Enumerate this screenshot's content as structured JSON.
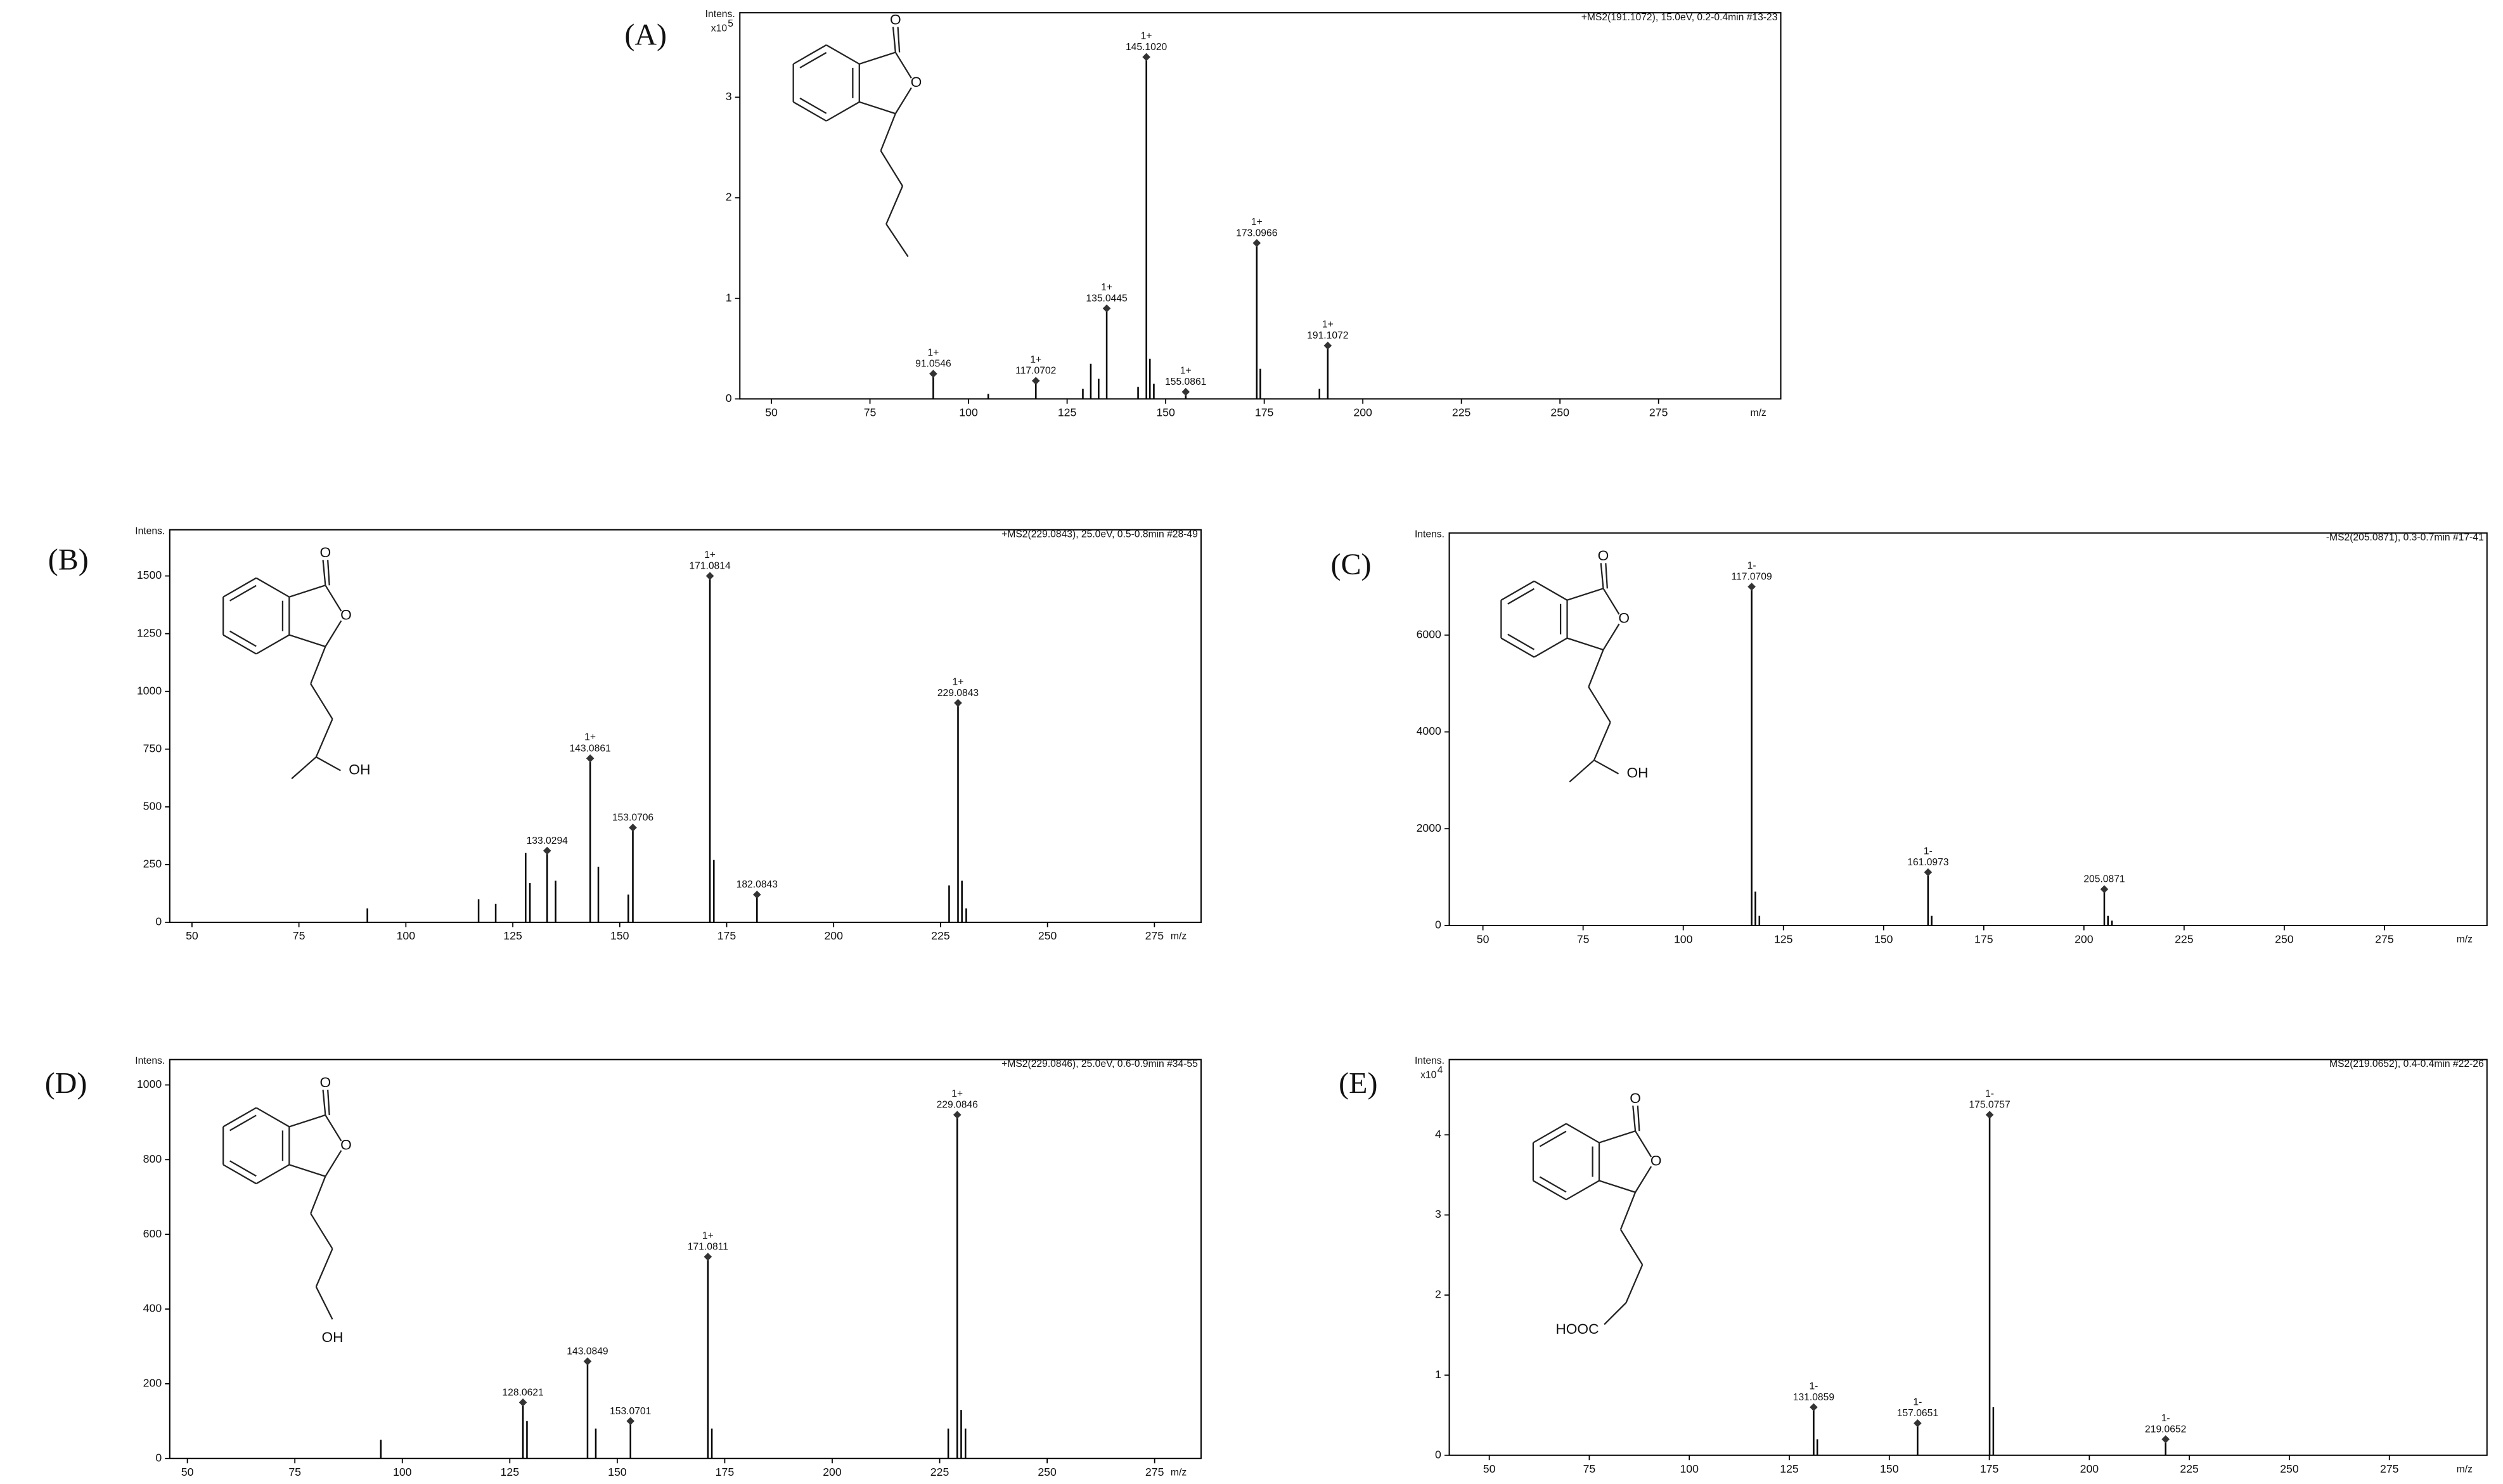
{
  "chart_data": [
    {
      "type": "bar",
      "panel": "(A)",
      "ylabel": "Intens.",
      "y_multiplier": {
        "base": "x10",
        "exponent": "5"
      },
      "header": "+MS2(191.1072), 15.0eV, 0.2-0.4min #13-23",
      "xlabel": "m/z",
      "xlim": [
        42,
        306
      ],
      "xticks": [
        50,
        75,
        100,
        125,
        150,
        175,
        200,
        225,
        250,
        275
      ],
      "ylim": [
        0,
        3.84
      ],
      "yticks": [
        0,
        1,
        2,
        3
      ],
      "x": [
        91.0546,
        105,
        117.0702,
        129,
        131,
        133,
        135.0445,
        143,
        145.102,
        146,
        147,
        155.0861,
        173.0966,
        174,
        189,
        191.1072
      ],
      "values": [
        0.25,
        0.05,
        0.18,
        0.1,
        0.35,
        0.2,
        0.9,
        0.12,
        3.4,
        0.4,
        0.15,
        0.07,
        1.55,
        0.3,
        0.1,
        0.53
      ],
      "peak_labels": [
        {
          "x": 91.0546,
          "charge": "1+",
          "label": "91.0546"
        },
        {
          "x": 117.0702,
          "charge": "1+",
          "label": "117.0702"
        },
        {
          "x": 135.0445,
          "charge": "1+",
          "label": "135.0445"
        },
        {
          "x": 145.102,
          "charge": "1+",
          "label": "145.1020"
        },
        {
          "x": 155.0861,
          "charge": "1+",
          "label": "155.0861"
        },
        {
          "x": 173.0966,
          "charge": "1+",
          "label": "173.0966"
        },
        {
          "x": 191.1072,
          "charge": "1+",
          "label": "191.1072"
        }
      ],
      "structure_labels": [
        "O",
        "O"
      ]
    },
    {
      "type": "bar",
      "panel": "(B)",
      "ylabel": "Intens.",
      "header": "+MS2(229.0843), 25.0eV, 0.5-0.8min #28-49",
      "xlabel": "m/z",
      "xlim": [
        44.8,
        285.9
      ],
      "xticks": [
        50,
        75,
        100,
        125,
        150,
        175,
        200,
        225,
        250,
        275
      ],
      "ylim": [
        0,
        1700
      ],
      "yticks": [
        0,
        250,
        500,
        750,
        1000,
        1250,
        1500
      ],
      "x": [
        91,
        117,
        121,
        128,
        129,
        133.0294,
        135,
        143.0861,
        145,
        152,
        153.0706,
        171.0814,
        172,
        182.0843,
        227,
        229.0843,
        230,
        231
      ],
      "values": [
        60,
        100,
        80,
        300,
        170,
        310,
        180,
        710,
        240,
        120,
        410,
        1500,
        270,
        120,
        160,
        950,
        180,
        60
      ],
      "peak_labels": [
        {
          "x": 133.0294,
          "charge": null,
          "label": "133.0294"
        },
        {
          "x": 143.0861,
          "charge": "1+",
          "label": "143.0861"
        },
        {
          "x": 153.0706,
          "charge": null,
          "label": "153.0706"
        },
        {
          "x": 171.0814,
          "charge": "1+",
          "label": "171.0814"
        },
        {
          "x": 182.0843,
          "charge": null,
          "label": "182.0843"
        },
        {
          "x": 229.0843,
          "charge": "1+",
          "label": "229.0843"
        }
      ],
      "structure_labels": [
        "O",
        "O",
        "OH"
      ]
    },
    {
      "type": "bar",
      "panel": "(C)",
      "ylabel": "Intens.",
      "header": "-MS2(205.0871), 0.3-0.7min #17-41",
      "xlabel": "m/z",
      "xlim": [
        41.6,
        300.6
      ],
      "xticks": [
        50,
        75,
        100,
        125,
        150,
        175,
        200,
        225,
        250,
        275
      ],
      "ylim": [
        0,
        8110
      ],
      "yticks": [
        0,
        2000,
        4000,
        6000
      ],
      "x": [
        117.0709,
        118,
        119,
        161.0973,
        162,
        205.0871,
        206,
        207
      ],
      "values": [
        7000,
        700,
        200,
        1100,
        200,
        750,
        200,
        100
      ],
      "peak_labels": [
        {
          "x": 117.0709,
          "charge": "1-",
          "label": "117.0709"
        },
        {
          "x": 161.0973,
          "charge": "1-",
          "label": "161.0973"
        },
        {
          "x": 205.0871,
          "charge": null,
          "label": "205.0871"
        }
      ],
      "structure_labels": [
        "O",
        "O",
        "OH"
      ]
    },
    {
      "type": "bar",
      "panel": "(D)",
      "ylabel": "Intens.",
      "header": "+MS2(229.0846), 25.0eV, 0.6-0.9min #34-55",
      "xlabel": "m/z",
      "xlim": [
        45.9,
        285.8
      ],
      "xticks": [
        50,
        75,
        100,
        125,
        150,
        175,
        200,
        225,
        250,
        275
      ],
      "ylim": [
        0,
        1068
      ],
      "yticks": [
        0,
        200,
        400,
        600,
        800,
        1000
      ],
      "x": [
        95,
        128.0621,
        129,
        143.0849,
        145,
        153.0701,
        171.0811,
        172,
        227,
        229.0846,
        230,
        231
      ],
      "values": [
        50,
        150,
        100,
        260,
        80,
        100,
        540,
        80,
        80,
        920,
        130,
        80
      ],
      "peak_labels": [
        {
          "x": 128.0621,
          "charge": null,
          "label": "128.0621"
        },
        {
          "x": 143.0849,
          "charge": null,
          "label": "143.0849"
        },
        {
          "x": 153.0701,
          "charge": null,
          "label": "153.0701"
        },
        {
          "x": 171.0811,
          "charge": "1+",
          "label": "171.0811"
        },
        {
          "x": 229.0846,
          "charge": "1+",
          "label": "229.0846"
        }
      ],
      "structure_labels": [
        "O",
        "O",
        "OH"
      ]
    },
    {
      "type": "bar",
      "panel": "(E)",
      "ylabel": "Intens.",
      "y_multiplier": {
        "base": "x10",
        "exponent": "4"
      },
      "header": "MS2(219.0652), 0.4-0.4min #22-26",
      "xlabel": "m/z",
      "xlim": [
        40,
        299.4
      ],
      "xticks": [
        50,
        75,
        100,
        125,
        150,
        175,
        200,
        225,
        250,
        275
      ],
      "ylim": [
        0,
        4.94
      ],
      "yticks": [
        0,
        1,
        2,
        3,
        4
      ],
      "x": [
        131.0859,
        132,
        157.0651,
        175.0757,
        176,
        219.0652
      ],
      "values": [
        0.6,
        0.2,
        0.4,
        4.25,
        0.6,
        0.2
      ],
      "peak_labels": [
        {
          "x": 131.0859,
          "charge": "1-",
          "label": "131.0859"
        },
        {
          "x": 157.0651,
          "charge": "1-",
          "label": "157.0651"
        },
        {
          "x": 175.0757,
          "charge": "1-",
          "label": "175.0757"
        },
        {
          "x": 219.0652,
          "charge": "1-",
          "label": "219.0652"
        }
      ],
      "structure_labels": [
        "O",
        "O",
        "HOOC"
      ]
    }
  ]
}
